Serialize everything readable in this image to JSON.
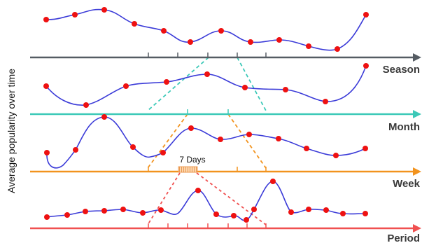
{
  "y_axis_label": "Average popularity over time",
  "annotation": "7 Days",
  "colors": {
    "curve": "#3b3bd8",
    "point": "#ee1111",
    "season": "#555c63",
    "month": "#3cc9b8",
    "week": "#f2931e",
    "period": "#f24b4b"
  },
  "rows": [
    {
      "id": "season",
      "label": "Season"
    },
    {
      "id": "month",
      "label": "Month"
    },
    {
      "id": "week",
      "label": "Week"
    },
    {
      "id": "period",
      "label": "Period"
    }
  ]
}
